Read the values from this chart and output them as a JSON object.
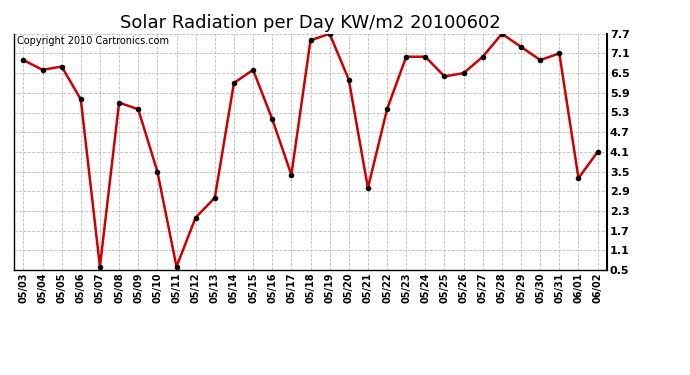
{
  "title": "Solar Radiation per Day KW/m2 20100602",
  "copyright": "Copyright 2010 Cartronics.com",
  "dates": [
    "05/03",
    "05/04",
    "05/05",
    "05/06",
    "05/07",
    "05/08",
    "05/09",
    "05/10",
    "05/11",
    "05/12",
    "05/13",
    "05/14",
    "05/15",
    "05/16",
    "05/17",
    "05/18",
    "05/19",
    "05/20",
    "05/21",
    "05/22",
    "05/23",
    "05/24",
    "05/25",
    "05/26",
    "05/27",
    "05/28",
    "05/29",
    "05/30",
    "05/31",
    "06/01",
    "06/02"
  ],
  "values": [
    6.9,
    6.6,
    6.7,
    5.7,
    0.6,
    5.6,
    5.4,
    3.5,
    0.6,
    2.1,
    2.7,
    6.2,
    6.6,
    5.1,
    3.4,
    7.5,
    7.7,
    6.3,
    3.0,
    5.4,
    7.0,
    7.0,
    6.4,
    6.5,
    7.0,
    7.7,
    7.3,
    6.9,
    7.1,
    3.3,
    4.1
  ],
  "line_color": "#cc0000",
  "marker_color": "#000000",
  "bg_color": "#ffffff",
  "grid_color": "#bbbbbb",
  "yticks": [
    0.5,
    1.1,
    1.7,
    2.3,
    2.9,
    3.5,
    4.1,
    4.7,
    5.3,
    5.9,
    6.5,
    7.1,
    7.7
  ],
  "ylim": [
    0.5,
    7.7
  ],
  "title_fontsize": 13,
  "copyright_fontsize": 7,
  "tick_fontsize": 7,
  "ytick_fontsize": 8
}
